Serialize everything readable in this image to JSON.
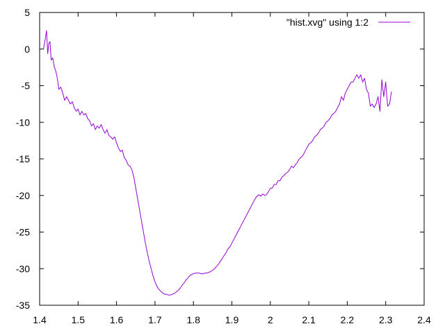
{
  "chart_data": {
    "type": "line",
    "title": "",
    "xlabel": "",
    "ylabel": "",
    "xlim": [
      1.4,
      2.4
    ],
    "ylim": [
      -35,
      5
    ],
    "xticks": [
      "1.4",
      "1.5",
      "1.6",
      "1.7",
      "1.8",
      "1.9",
      "2",
      "2.1",
      "2.2",
      "2.3",
      "2.4"
    ],
    "yticks": [
      "5",
      "0",
      "-5",
      "-10",
      "-15",
      "-20",
      "-25",
      "-30",
      "-35"
    ],
    "grid": false,
    "legend": "top-right",
    "series": [
      {
        "name": "\"hist.xvg\" using 1:2",
        "color": "#9400d3",
        "points": [
          [
            1.41,
            0.0
          ],
          [
            1.414,
            1.2
          ],
          [
            1.418,
            2.5
          ],
          [
            1.421,
            -0.6
          ],
          [
            1.424,
            0.8
          ],
          [
            1.427,
            1.0
          ],
          [
            1.43,
            -1.5
          ],
          [
            1.434,
            -1.2
          ],
          [
            1.438,
            -2.4
          ],
          [
            1.442,
            -3.0
          ],
          [
            1.446,
            -4.0
          ],
          [
            1.45,
            -5.5
          ],
          [
            1.455,
            -5.2
          ],
          [
            1.46,
            -6.0
          ],
          [
            1.465,
            -7.0
          ],
          [
            1.47,
            -6.5
          ],
          [
            1.475,
            -7.0
          ],
          [
            1.48,
            -7.5
          ],
          [
            1.485,
            -7.2
          ],
          [
            1.49,
            -8.0
          ],
          [
            1.495,
            -8.5
          ],
          [
            1.5,
            -8.2
          ],
          [
            1.505,
            -9.0
          ],
          [
            1.51,
            -8.5
          ],
          [
            1.515,
            -9.0
          ],
          [
            1.52,
            -8.8
          ],
          [
            1.525,
            -9.5
          ],
          [
            1.53,
            -9.8
          ],
          [
            1.535,
            -10.5
          ],
          [
            1.54,
            -10.2
          ],
          [
            1.545,
            -11.0
          ],
          [
            1.55,
            -10.5
          ],
          [
            1.555,
            -10.8
          ],
          [
            1.56,
            -10.3
          ],
          [
            1.565,
            -11.0
          ],
          [
            1.57,
            -11.5
          ],
          [
            1.575,
            -11.0
          ],
          [
            1.58,
            -11.8
          ],
          [
            1.585,
            -12.0
          ],
          [
            1.59,
            -12.3
          ],
          [
            1.595,
            -12.0
          ],
          [
            1.6,
            -12.8
          ],
          [
            1.605,
            -13.5
          ],
          [
            1.61,
            -14.0
          ],
          [
            1.615,
            -13.8
          ],
          [
            1.62,
            -14.8
          ],
          [
            1.625,
            -15.2
          ],
          [
            1.63,
            -15.8
          ],
          [
            1.635,
            -16.0
          ],
          [
            1.64,
            -16.5
          ],
          [
            1.645,
            -17.5
          ],
          [
            1.65,
            -19.0
          ],
          [
            1.655,
            -20.5
          ],
          [
            1.66,
            -22.0
          ],
          [
            1.665,
            -23.5
          ],
          [
            1.67,
            -25.0
          ],
          [
            1.675,
            -26.5
          ],
          [
            1.68,
            -27.8
          ],
          [
            1.685,
            -29.0
          ],
          [
            1.69,
            -30.0
          ],
          [
            1.695,
            -31.0
          ],
          [
            1.7,
            -31.8
          ],
          [
            1.705,
            -32.4
          ],
          [
            1.71,
            -32.8
          ],
          [
            1.715,
            -33.1
          ],
          [
            1.72,
            -33.3
          ],
          [
            1.725,
            -33.5
          ],
          [
            1.73,
            -33.5
          ],
          [
            1.735,
            -33.6
          ],
          [
            1.74,
            -33.6
          ],
          [
            1.745,
            -33.5
          ],
          [
            1.75,
            -33.4
          ],
          [
            1.755,
            -33.2
          ],
          [
            1.76,
            -33.0
          ],
          [
            1.765,
            -32.7
          ],
          [
            1.77,
            -32.3
          ],
          [
            1.775,
            -32.0
          ],
          [
            1.78,
            -31.6
          ],
          [
            1.785,
            -31.3
          ],
          [
            1.79,
            -31.0
          ],
          [
            1.795,
            -30.8
          ],
          [
            1.8,
            -30.7
          ],
          [
            1.805,
            -30.6
          ],
          [
            1.81,
            -30.6
          ],
          [
            1.815,
            -30.6
          ],
          [
            1.82,
            -30.7
          ],
          [
            1.825,
            -30.7
          ],
          [
            1.83,
            -30.6
          ],
          [
            1.835,
            -30.6
          ],
          [
            1.84,
            -30.5
          ],
          [
            1.845,
            -30.4
          ],
          [
            1.85,
            -30.2
          ],
          [
            1.855,
            -30.0
          ],
          [
            1.86,
            -29.7
          ],
          [
            1.865,
            -29.4
          ],
          [
            1.87,
            -29.0
          ],
          [
            1.875,
            -28.6
          ],
          [
            1.88,
            -28.2
          ],
          [
            1.885,
            -27.8
          ],
          [
            1.89,
            -27.3
          ],
          [
            1.895,
            -27.0
          ],
          [
            1.9,
            -26.5
          ],
          [
            1.905,
            -26.0
          ],
          [
            1.91,
            -25.5
          ],
          [
            1.915,
            -25.0
          ],
          [
            1.92,
            -24.5
          ],
          [
            1.925,
            -24.0
          ],
          [
            1.93,
            -23.5
          ],
          [
            1.935,
            -23.0
          ],
          [
            1.94,
            -22.5
          ],
          [
            1.945,
            -22.0
          ],
          [
            1.95,
            -21.5
          ],
          [
            1.955,
            -21.0
          ],
          [
            1.96,
            -20.5
          ],
          [
            1.965,
            -20.1
          ],
          [
            1.97,
            -19.9
          ],
          [
            1.975,
            -20.1
          ],
          [
            1.98,
            -19.8
          ],
          [
            1.985,
            -20.0
          ],
          [
            1.99,
            -19.9
          ],
          [
            1.995,
            -19.5
          ],
          [
            2.0,
            -19.0
          ],
          [
            2.005,
            -19.0
          ],
          [
            2.01,
            -18.5
          ],
          [
            2.015,
            -18.5
          ],
          [
            2.02,
            -18.0
          ],
          [
            2.025,
            -18.0
          ],
          [
            2.03,
            -17.5
          ],
          [
            2.035,
            -17.3
          ],
          [
            2.04,
            -17.0
          ],
          [
            2.045,
            -16.8
          ],
          [
            2.05,
            -16.5
          ],
          [
            2.055,
            -16.0
          ],
          [
            2.06,
            -16.2
          ],
          [
            2.065,
            -15.8
          ],
          [
            2.07,
            -15.5
          ],
          [
            2.075,
            -15.0
          ],
          [
            2.08,
            -14.8
          ],
          [
            2.085,
            -14.5
          ],
          [
            2.09,
            -14.0
          ],
          [
            2.095,
            -13.5
          ],
          [
            2.1,
            -13.0
          ],
          [
            2.105,
            -12.8
          ],
          [
            2.11,
            -12.5
          ],
          [
            2.115,
            -12.0
          ],
          [
            2.12,
            -11.8
          ],
          [
            2.125,
            -11.5
          ],
          [
            2.13,
            -11.0
          ],
          [
            2.135,
            -10.8
          ],
          [
            2.14,
            -10.5
          ],
          [
            2.145,
            -10.0
          ],
          [
            2.15,
            -9.8
          ],
          [
            2.155,
            -9.5
          ],
          [
            2.16,
            -9.0
          ],
          [
            2.165,
            -8.8
          ],
          [
            2.17,
            -8.5
          ],
          [
            2.175,
            -8.0
          ],
          [
            2.18,
            -7.5
          ],
          [
            2.185,
            -6.5
          ],
          [
            2.19,
            -7.0
          ],
          [
            2.195,
            -6.0
          ],
          [
            2.2,
            -5.5
          ],
          [
            2.205,
            -5.0
          ],
          [
            2.21,
            -4.5
          ],
          [
            2.215,
            -4.5
          ],
          [
            2.22,
            -4.0
          ],
          [
            2.225,
            -3.5
          ],
          [
            2.23,
            -4.0
          ],
          [
            2.235,
            -3.5
          ],
          [
            2.24,
            -4.5
          ],
          [
            2.245,
            -4.0
          ],
          [
            2.25,
            -5.5
          ],
          [
            2.255,
            -6.0
          ],
          [
            2.26,
            -7.8
          ],
          [
            2.265,
            -7.5
          ],
          [
            2.27,
            -8.0
          ],
          [
            2.275,
            -7.5
          ],
          [
            2.28,
            -6.5
          ],
          [
            2.285,
            -8.5
          ],
          [
            2.29,
            -4.2
          ],
          [
            2.295,
            -6.5
          ],
          [
            2.3,
            -4.5
          ],
          [
            2.305,
            -7.8
          ],
          [
            2.31,
            -7.5
          ],
          [
            2.315,
            -5.8
          ]
        ]
      }
    ]
  }
}
